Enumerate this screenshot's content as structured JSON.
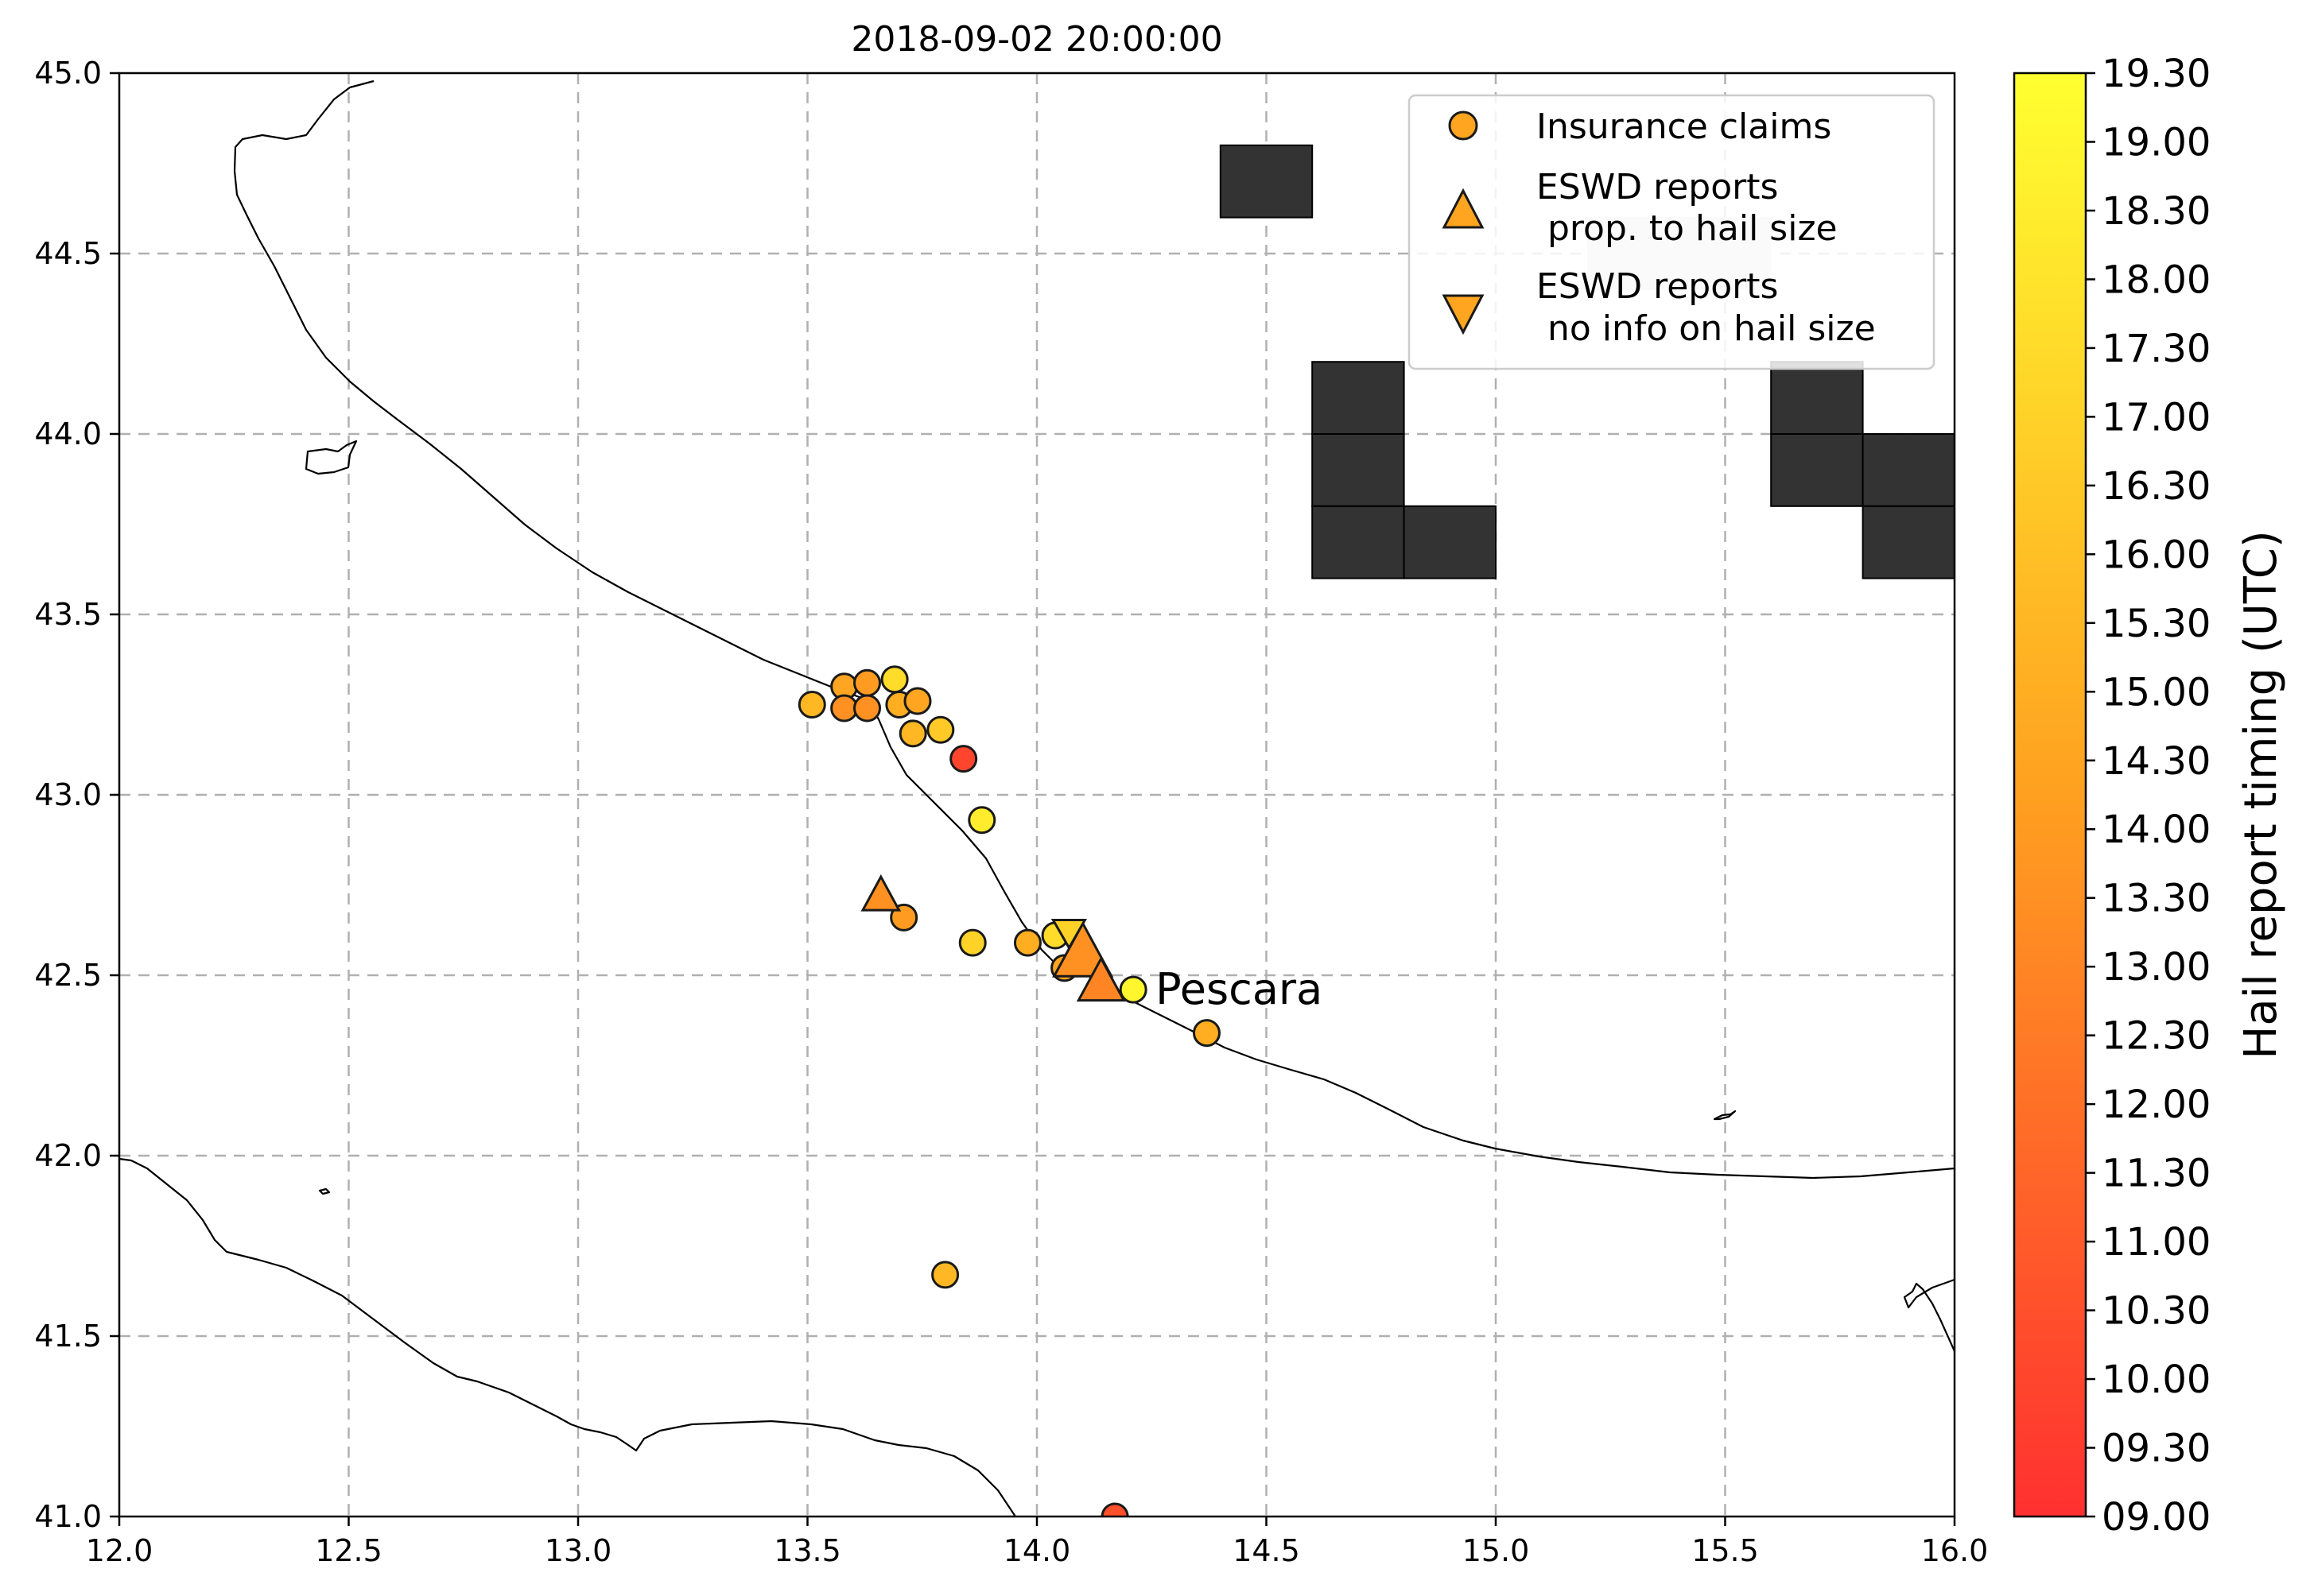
{
  "title": "2018-09-02 20:00:00",
  "map": {
    "x_ticks": [
      "12.0",
      "12.5",
      "13.0",
      "13.5",
      "14.0",
      "14.5",
      "15.0",
      "15.5",
      "16.0"
    ],
    "y_ticks": [
      "45.0",
      "44.5",
      "44.0",
      "43.5",
      "43.0",
      "42.5",
      "42.0",
      "41.5",
      "41.0"
    ],
    "xlim": [
      12.0,
      16.0
    ],
    "ylim": [
      41.0,
      45.0
    ],
    "grid": "dashed",
    "city_label": "Pescara",
    "city_lonlat": [
      14.21,
      42.46
    ]
  },
  "legend": {
    "placement": "top-right",
    "items": [
      {
        "marker": "circle",
        "label": "Insurance claims"
      },
      {
        "marker": "triangle-up",
        "label_line1": "ESWD reports",
        "label_line2": " prop. to hail size"
      },
      {
        "marker": "triangle-down",
        "label_line1": "ESWD reports",
        "label_line2": " no info on hail size"
      }
    ]
  },
  "colorbar": {
    "label": "Hail report timing (UTC)",
    "ticks": [
      "19.30",
      "19.00",
      "18.30",
      "18.00",
      "17.30",
      "17.00",
      "16.30",
      "16.00",
      "15.30",
      "15.00",
      "14.30",
      "14.00",
      "13.30",
      "13.00",
      "12.30",
      "12.00",
      "11.30",
      "11.00",
      "10.30",
      "10.00",
      "09.30",
      "09.00"
    ],
    "range": [
      9.0,
      19.5
    ],
    "color_low": "#ff3030",
    "color_mid": "#ffa020",
    "color_high": "#ffff30"
  },
  "chart_data": {
    "type": "scatter",
    "xlabel": "",
    "ylabel": "",
    "xlim": [
      12.0,
      16.0
    ],
    "ylim": [
      41.0,
      45.0
    ],
    "insurance_claims": [
      {
        "lon": 13.51,
        "lat": 43.25,
        "time": 15.5
      },
      {
        "lon": 13.58,
        "lat": 43.3,
        "time": 14.5
      },
      {
        "lon": 13.58,
        "lat": 43.24,
        "time": 13.5
      },
      {
        "lon": 13.63,
        "lat": 43.31,
        "time": 14.0
      },
      {
        "lon": 13.63,
        "lat": 43.24,
        "time": 13.5
      },
      {
        "lon": 13.69,
        "lat": 43.32,
        "time": 17.5
      },
      {
        "lon": 13.7,
        "lat": 43.25,
        "time": 15.0
      },
      {
        "lon": 13.74,
        "lat": 43.26,
        "time": 14.5
      },
      {
        "lon": 13.73,
        "lat": 43.17,
        "time": 15.5
      },
      {
        "lon": 13.79,
        "lat": 43.18,
        "time": 16.5
      },
      {
        "lon": 13.84,
        "lat": 43.1,
        "time": 10.0
      },
      {
        "lon": 13.88,
        "lat": 42.93,
        "time": 18.5
      },
      {
        "lon": 13.71,
        "lat": 42.66,
        "time": 14.0
      },
      {
        "lon": 13.86,
        "lat": 42.59,
        "time": 17.0
      },
      {
        "lon": 13.98,
        "lat": 42.59,
        "time": 15.0
      },
      {
        "lon": 14.04,
        "lat": 42.61,
        "time": 17.5
      },
      {
        "lon": 14.06,
        "lat": 42.52,
        "time": 14.5
      },
      {
        "lon": 14.21,
        "lat": 42.46,
        "time": 19.0
      },
      {
        "lon": 14.37,
        "lat": 42.34,
        "time": 15.0
      },
      {
        "lon": 13.8,
        "lat": 41.67,
        "time": 15.5
      },
      {
        "lon": 14.17,
        "lat": 41.0,
        "time": 10.5
      }
    ],
    "eswd_size": [
      {
        "lon": 13.66,
        "lat": 42.72,
        "time": 13.5,
        "size": "small"
      },
      {
        "lon": 14.1,
        "lat": 42.56,
        "time": 13.5,
        "size": "large"
      },
      {
        "lon": 14.14,
        "lat": 42.48,
        "time": 13.0,
        "size": "medium"
      }
    ],
    "eswd_nosize": [
      {
        "lon": 14.07,
        "lat": 42.62,
        "time": 17.0
      }
    ],
    "dark_cells": [
      {
        "lon": 14.4,
        "lat": 44.6
      },
      {
        "lon": 14.6,
        "lat": 44.0
      },
      {
        "lon": 14.6,
        "lat": 43.8
      },
      {
        "lon": 14.6,
        "lat": 43.6
      },
      {
        "lon": 14.8,
        "lat": 43.6
      },
      {
        "lon": 15.6,
        "lat": 44.0
      },
      {
        "lon": 15.6,
        "lat": 43.8
      },
      {
        "lon": 15.8,
        "lat": 43.8
      },
      {
        "lon": 15.8,
        "lat": 43.6
      }
    ],
    "light_cells": [
      {
        "lon": 15.2,
        "lat": 44.4
      },
      {
        "lon": 15.4,
        "lat": 44.4
      }
    ]
  }
}
